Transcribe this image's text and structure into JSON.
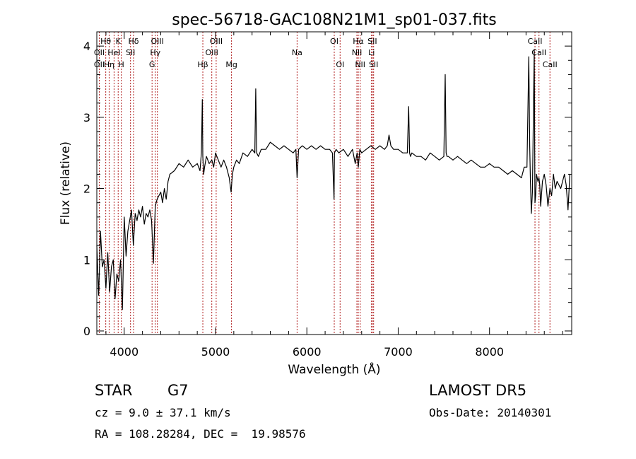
{
  "chart_data": {
    "type": "line",
    "title": "spec-56718-GAC108N21M1_sp01-037.fits",
    "xlabel": "Wavelength (Å)",
    "ylabel": "Flux (relative)",
    "xlim": [
      3700,
      8900
    ],
    "ylim": [
      -0.05,
      4.2
    ],
    "xticks": [
      4000,
      5000,
      6000,
      7000,
      8000
    ],
    "yticks": [
      0,
      1,
      2,
      3,
      4
    ],
    "line_color": "#000000",
    "marker_color": "#b22222",
    "grid": false,
    "line_markers": [
      {
        "label": "OII",
        "wavelength": 3727,
        "row": 3
      },
      {
        "label": "Hθ",
        "wavelength": 3798,
        "row": 1
      },
      {
        "label": "OII",
        "wavelength": 3727,
        "row": 2
      },
      {
        "label": "Hη",
        "wavelength": 3835,
        "row": 3
      },
      {
        "label": "K",
        "wavelength": 3934,
        "row": 1
      },
      {
        "label": "HeI",
        "wavelength": 3889,
        "row": 2
      },
      {
        "label": "H",
        "wavelength": 3968,
        "row": 3
      },
      {
        "label": "Hδ",
        "wavelength": 4102,
        "row": 1
      },
      {
        "label": "SII",
        "wavelength": 4069,
        "row": 2
      },
      {
        "label": "OIII",
        "wavelength": 4363,
        "row": 1
      },
      {
        "label": "Hγ",
        "wavelength": 4340,
        "row": 2
      },
      {
        "label": "G",
        "wavelength": 4305,
        "row": 3
      },
      {
        "label": "Hβ",
        "wavelength": 4861,
        "row": 3
      },
      {
        "label": "OIII",
        "wavelength": 4959,
        "row": 2
      },
      {
        "label": "OIII",
        "wavelength": 5007,
        "row": 1
      },
      {
        "label": "Mg",
        "wavelength": 5175,
        "row": 3
      },
      {
        "label": "Na",
        "wavelength": 5893,
        "row": 2
      },
      {
        "label": "OI",
        "wavelength": 6300,
        "row": 1
      },
      {
        "label": "OI",
        "wavelength": 6364,
        "row": 3
      },
      {
        "label": "Hα",
        "wavelength": 6563,
        "row": 1
      },
      {
        "label": "NII",
        "wavelength": 6548,
        "row": 2
      },
      {
        "label": "NII",
        "wavelength": 6584,
        "row": 3
      },
      {
        "label": "SII",
        "wavelength": 6717,
        "row": 1
      },
      {
        "label": "Li",
        "wavelength": 6708,
        "row": 2
      },
      {
        "label": "SII",
        "wavelength": 6731,
        "row": 3
      },
      {
        "label": "CaII",
        "wavelength": 8498,
        "row": 1
      },
      {
        "label": "CaII",
        "wavelength": 8542,
        "row": 2
      },
      {
        "label": "CaII",
        "wavelength": 8662,
        "row": 3
      }
    ],
    "series": [
      {
        "x": [
          3700,
          3720,
          3740,
          3760,
          3780,
          3800,
          3820,
          3840,
          3860,
          3880,
          3900,
          3920,
          3940,
          3960,
          3980,
          4000,
          4020,
          4040,
          4060,
          4080,
          4100,
          4120,
          4140,
          4160,
          4180,
          4200,
          4220,
          4240,
          4260,
          4280,
          4300,
          4320,
          4340,
          4360,
          4380,
          4400,
          4420,
          4440,
          4460,
          4480,
          4500,
          4550,
          4600,
          4650,
          4700,
          4750,
          4800,
          4830,
          4845,
          4855,
          4861,
          4870,
          4880,
          4900,
          4930,
          4960,
          4980,
          5000,
          5030,
          5060,
          5090,
          5120,
          5150,
          5170,
          5185,
          5200,
          5230,
          5260,
          5300,
          5350,
          5400,
          5430,
          5440,
          5450,
          5470,
          5500,
          5550,
          5600,
          5650,
          5700,
          5750,
          5800,
          5850,
          5880,
          5893,
          5910,
          5950,
          6000,
          6050,
          6100,
          6150,
          6200,
          6250,
          6280,
          6298,
          6302,
          6320,
          6350,
          6400,
          6450,
          6500,
          6530,
          6550,
          6563,
          6580,
          6600,
          6650,
          6700,
          6750,
          6800,
          6850,
          6880,
          6900,
          6920,
          6950,
          7000,
          7050,
          7100,
          7115,
          7125,
          7135,
          7150,
          7200,
          7250,
          7300,
          7350,
          7400,
          7450,
          7500,
          7515,
          7525,
          7535,
          7550,
          7600,
          7650,
          7700,
          7750,
          7800,
          7850,
          7900,
          7950,
          8000,
          8050,
          8100,
          8150,
          8200,
          8250,
          8300,
          8350,
          8380,
          8410,
          8430,
          8440,
          8448,
          8458,
          8470,
          8490,
          8498,
          8505,
          8515,
          8530,
          8542,
          8550,
          8560,
          8580,
          8600,
          8620,
          8640,
          8662,
          8680,
          8700,
          8720,
          8740,
          8760,
          8780,
          8800,
          8820,
          8840,
          8860,
          8880
        ],
        "y": [
          1.2,
          0.5,
          1.4,
          0.9,
          1.0,
          0.6,
          1.1,
          0.55,
          0.9,
          1.0,
          0.45,
          0.8,
          0.7,
          1.0,
          0.3,
          1.6,
          1.05,
          1.4,
          1.55,
          1.7,
          1.2,
          1.65,
          1.55,
          1.7,
          1.6,
          1.75,
          1.5,
          1.65,
          1.6,
          1.7,
          1.55,
          0.95,
          1.75,
          1.85,
          1.9,
          1.95,
          1.8,
          2.0,
          1.85,
          2.1,
          2.2,
          2.25,
          2.35,
          2.3,
          2.4,
          2.3,
          2.35,
          2.25,
          2.5,
          3.25,
          2.45,
          2.2,
          2.3,
          2.45,
          2.35,
          2.4,
          2.3,
          2.5,
          2.4,
          2.3,
          2.4,
          2.3,
          2.15,
          1.95,
          2.2,
          2.3,
          2.4,
          2.35,
          2.5,
          2.45,
          2.55,
          2.5,
          3.4,
          2.5,
          2.45,
          2.55,
          2.55,
          2.65,
          2.6,
          2.55,
          2.6,
          2.55,
          2.5,
          2.55,
          2.15,
          2.55,
          2.6,
          2.55,
          2.6,
          2.55,
          2.6,
          2.55,
          2.55,
          2.5,
          1.85,
          2.5,
          2.55,
          2.5,
          2.55,
          2.45,
          2.55,
          2.35,
          2.5,
          2.3,
          2.55,
          2.5,
          2.55,
          2.6,
          2.55,
          2.6,
          2.55,
          2.6,
          2.75,
          2.6,
          2.55,
          2.55,
          2.5,
          2.5,
          3.15,
          2.5,
          2.45,
          2.5,
          2.45,
          2.45,
          2.4,
          2.5,
          2.45,
          2.4,
          2.45,
          3.6,
          2.5,
          2.45,
          2.45,
          2.4,
          2.45,
          2.4,
          2.35,
          2.4,
          2.35,
          2.3,
          2.3,
          2.35,
          2.3,
          2.3,
          2.25,
          2.2,
          2.25,
          2.2,
          2.15,
          2.3,
          2.3,
          3.85,
          2.6,
          2.1,
          1.65,
          1.95,
          3.95,
          1.8,
          1.9,
          2.2,
          2.1,
          2.15,
          2.05,
          1.75,
          2.1,
          2.2,
          2.05,
          1.75,
          2.0,
          1.9,
          2.2,
          2.0,
          2.1,
          2.05,
          2.0,
          2.1,
          2.2,
          2.05,
          1.7,
          2.2
        ]
      }
    ]
  },
  "info": {
    "class_label": "STAR",
    "subclass_label": "G7",
    "redshift": "cz = 9.0 ± 37.1 km/s",
    "coordinates": "RA = 108.28284, DEC =  19.98576",
    "survey": "LAMOST DR5",
    "obs_date": "Obs-Date: 20140301"
  }
}
